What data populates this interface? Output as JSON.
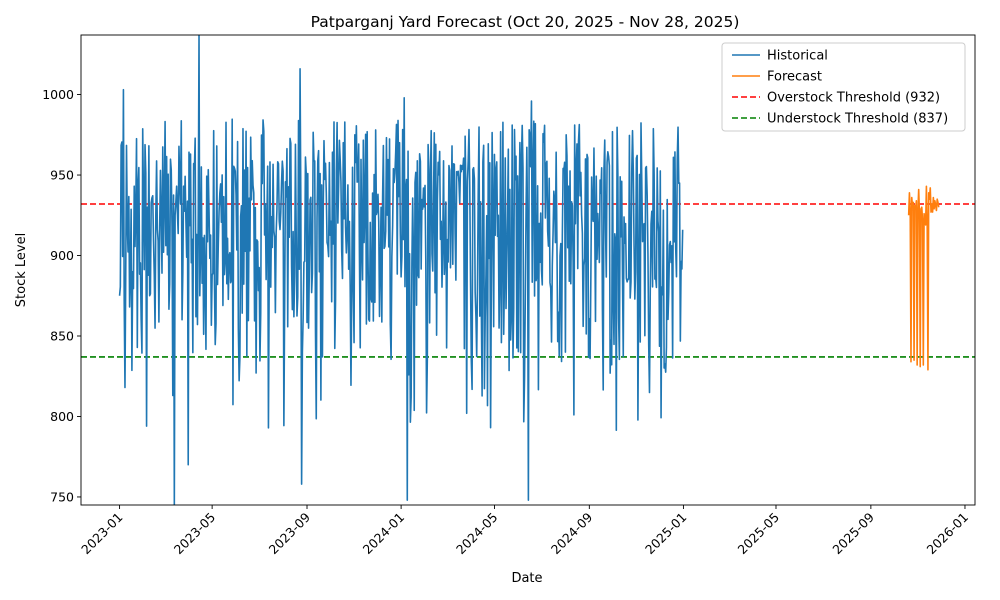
{
  "chart_data": {
    "type": "line",
    "title": "Patparganj Yard Forecast (Oct 20, 2025 - Nov 28, 2025)",
    "xlabel": "Date",
    "ylabel": "Stock Level",
    "xlim": [
      "2022-11-12",
      "2026-01-14"
    ],
    "ylim": [
      745,
      1037
    ],
    "x_ticks": [
      "2023-01",
      "2023-05",
      "2023-09",
      "2024-01",
      "2024-05",
      "2024-09",
      "2025-01",
      "2025-05",
      "2025-09",
      "2026-01"
    ],
    "y_ticks": [
      750,
      800,
      850,
      900,
      950,
      1000
    ],
    "legend_position": "upper right",
    "grid": false,
    "series": [
      {
        "name": "Historical",
        "color": "#1f77b4",
        "style": "solid",
        "x_start": "2023-01-01",
        "x_end": "2024-12-31",
        "frequency": "daily",
        "sample_points": [
          {
            "x": "2023-01-01",
            "y": 875
          },
          {
            "x": "2023-01-06",
            "y": 1003
          },
          {
            "x": "2023-01-08",
            "y": 818
          },
          {
            "x": "2023-02-05",
            "y": 794
          },
          {
            "x": "2023-03-13",
            "y": 745
          },
          {
            "x": "2023-03-31",
            "y": 770
          },
          {
            "x": "2023-04-14",
            "y": 1037
          },
          {
            "x": "2023-08-23",
            "y": 1016
          },
          {
            "x": "2023-08-25",
            "y": 758
          },
          {
            "x": "2024-01-05",
            "y": 998
          },
          {
            "x": "2024-01-09",
            "y": 748
          },
          {
            "x": "2024-06-14",
            "y": 748
          },
          {
            "x": "2024-06-18",
            "y": 996
          },
          {
            "x": "2024-12-31",
            "y": 916
          }
        ],
        "range": [
          745,
          1037
        ]
      },
      {
        "name": "Forecast",
        "color": "#ff7f0e",
        "style": "solid",
        "x": [
          "2025-10-20",
          "2025-10-21",
          "2025-10-22",
          "2025-10-23",
          "2025-10-24",
          "2025-10-25",
          "2025-10-26",
          "2025-10-27",
          "2025-10-28",
          "2025-10-29",
          "2025-10-30",
          "2025-10-31",
          "2025-11-01",
          "2025-11-02",
          "2025-11-03",
          "2025-11-04",
          "2025-11-05",
          "2025-11-06",
          "2025-11-07",
          "2025-11-08",
          "2025-11-09",
          "2025-11-10",
          "2025-11-11",
          "2025-11-12",
          "2025-11-13",
          "2025-11-14",
          "2025-11-15",
          "2025-11-16",
          "2025-11-17",
          "2025-11-18",
          "2025-11-19",
          "2025-11-20",
          "2025-11-21",
          "2025-11-22",
          "2025-11-23",
          "2025-11-24",
          "2025-11-25",
          "2025-11-26",
          "2025-11-27",
          "2025-11-28"
        ],
        "y": [
          925,
          939,
          928,
          834,
          936,
          930,
          933,
          835,
          931,
          929,
          934,
          832,
          928,
          941,
          926,
          831,
          929,
          930,
          922,
          832,
          926,
          922,
          919,
          943,
          921,
          829,
          939,
          935,
          942,
          927,
          932,
          927,
          936,
          929,
          934,
          931,
          928,
          935,
          933,
          930
        ]
      },
      {
        "name": "Overstock Threshold (932)",
        "color": "#ff0000",
        "style": "dashed",
        "y": 932
      },
      {
        "name": "Understock Threshold (837)",
        "color": "#008000",
        "style": "dashed",
        "y": 837
      }
    ]
  }
}
